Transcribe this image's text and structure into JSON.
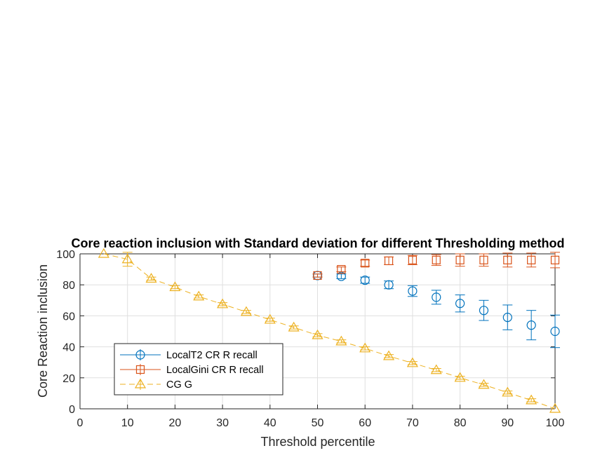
{
  "chart_data": {
    "type": "line",
    "title": "Core reaction inclusion with Standard deviation for different Thresholding method",
    "xlabel": "Threshold percentile",
    "ylabel": "Core Reaction inclusion",
    "xlim": [
      0,
      100
    ],
    "ylim": [
      0,
      100
    ],
    "xticks": [
      0,
      10,
      20,
      30,
      40,
      50,
      60,
      70,
      80,
      90,
      100
    ],
    "yticks": [
      0,
      20,
      40,
      60,
      80,
      100
    ],
    "grid": true,
    "legend_position": "bottom-left",
    "series": [
      {
        "name": "LocalT2 CR R recall",
        "color": "#0072BD",
        "marker": "circle",
        "line_style": "none",
        "x": [
          50,
          55,
          60,
          65,
          70,
          75,
          80,
          85,
          90,
          95,
          100
        ],
        "y": [
          86,
          85.5,
          83,
          80,
          76,
          72,
          68,
          63.5,
          59,
          54,
          50
        ],
        "error": [
          1,
          1.5,
          2,
          2.5,
          3.5,
          4.5,
          5.5,
          6.5,
          8,
          9.5,
          10.5
        ]
      },
      {
        "name": "LocalGini CR R recall",
        "color": "#D95319",
        "marker": "square",
        "line_style": "none",
        "x": [
          50,
          55,
          60,
          65,
          70,
          75,
          80,
          85,
          90,
          95,
          100
        ],
        "y": [
          86,
          90,
          94,
          95.5,
          96,
          96,
          96,
          96,
          96,
          96,
          96
        ],
        "error": [
          1,
          1.5,
          2,
          2.5,
          3,
          3.5,
          4,
          4,
          4.5,
          4.5,
          5
        ]
      },
      {
        "name": "CG G",
        "color": "#EDB120",
        "marker": "triangle",
        "line_style": "dashed",
        "x": [
          5,
          10,
          15,
          20,
          25,
          30,
          35,
          40,
          45,
          50,
          55,
          60,
          65,
          70,
          75,
          80,
          85,
          90,
          95,
          100
        ],
        "y": [
          100,
          96.5,
          84,
          78.5,
          72.5,
          67.5,
          62.5,
          57.5,
          52.5,
          47.5,
          43.5,
          39,
          34,
          29.5,
          25,
          20,
          15.5,
          10.5,
          5.5,
          0
        ],
        "error": [
          0,
          4.5,
          1,
          1,
          1,
          1,
          1,
          1,
          1,
          1,
          1,
          1,
          1,
          1,
          1,
          1,
          1,
          1,
          1,
          0
        ]
      }
    ]
  }
}
